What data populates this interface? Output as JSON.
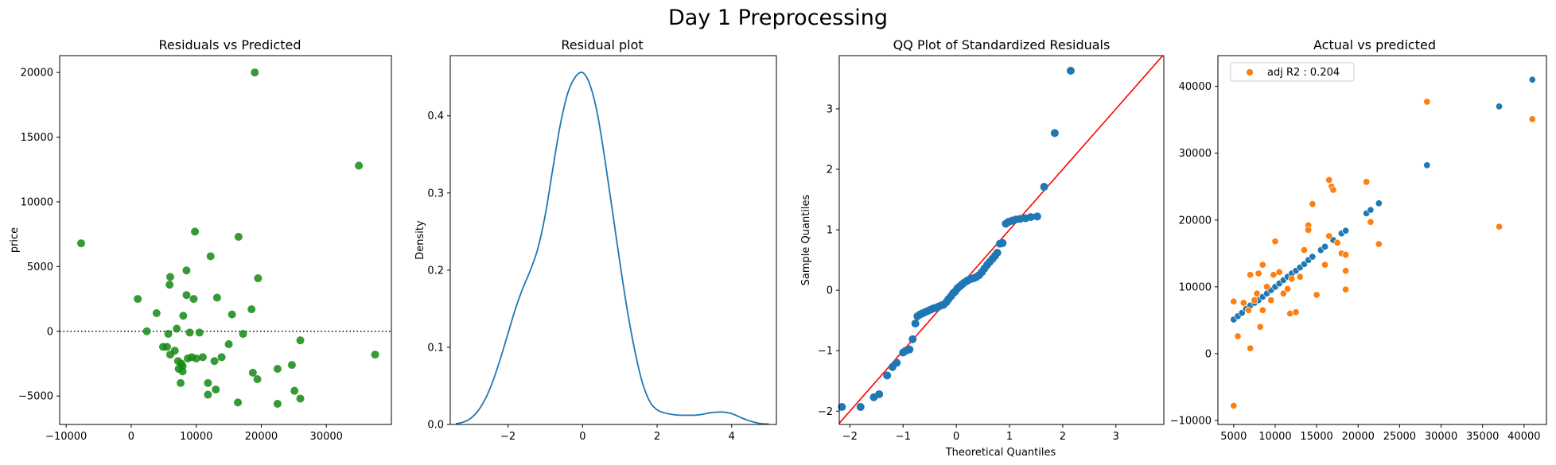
{
  "figure": {
    "title": "Day 1 Preprocessing"
  },
  "chart_data": [
    {
      "type": "scatter",
      "title": "Residuals vs Predicted",
      "xlabel": "",
      "ylabel": "price",
      "xlim": [
        -11000,
        40000
      ],
      "ylim": [
        -7200,
        21300
      ],
      "xticks": [
        -10000,
        0,
        10000,
        20000,
        30000
      ],
      "yticks": [
        -5000,
        0,
        5000,
        10000,
        15000,
        20000
      ],
      "reference_line": {
        "y": 0,
        "style": "dotted"
      },
      "color": "#138a13",
      "points": [
        [
          -7700,
          6800
        ],
        [
          19000,
          20000
        ],
        [
          35000,
          12800
        ],
        [
          37500,
          -1800
        ],
        [
          9800,
          7700
        ],
        [
          16500,
          7300
        ],
        [
          8500,
          4700
        ],
        [
          12200,
          5800
        ],
        [
          19500,
          4100
        ],
        [
          6000,
          4200
        ],
        [
          5900,
          3600
        ],
        [
          1000,
          2500
        ],
        [
          3900,
          1400
        ],
        [
          8500,
          2800
        ],
        [
          9600,
          2500
        ],
        [
          13200,
          2600
        ],
        [
          15500,
          1300
        ],
        [
          18500,
          1700
        ],
        [
          8000,
          1200
        ],
        [
          2400,
          0
        ],
        [
          7000,
          200
        ],
        [
          5700,
          -200
        ],
        [
          9000,
          -100
        ],
        [
          10500,
          -100
        ],
        [
          17200,
          -200
        ],
        [
          26000,
          -700
        ],
        [
          5500,
          -1200
        ],
        [
          6700,
          -1500
        ],
        [
          6000,
          -1800
        ],
        [
          4900,
          -1200
        ],
        [
          15000,
          -1000
        ],
        [
          7200,
          -2300
        ],
        [
          7700,
          -2500
        ],
        [
          7900,
          -2700
        ],
        [
          8700,
          -2100
        ],
        [
          9300,
          -2000
        ],
        [
          10000,
          -2100
        ],
        [
          11000,
          -2000
        ],
        [
          12800,
          -2300
        ],
        [
          13900,
          -2000
        ],
        [
          7300,
          -2900
        ],
        [
          7900,
          -3100
        ],
        [
          7600,
          -4000
        ],
        [
          11800,
          -4000
        ],
        [
          13000,
          -4500
        ],
        [
          11800,
          -4900
        ],
        [
          18700,
          -3200
        ],
        [
          19400,
          -3700
        ],
        [
          22500,
          -2900
        ],
        [
          24700,
          -2600
        ],
        [
          25100,
          -4600
        ],
        [
          16400,
          -5500
        ],
        [
          22500,
          -5600
        ],
        [
          26000,
          -5200
        ]
      ]
    },
    {
      "type": "line",
      "title": "Residual plot",
      "xlabel": "",
      "ylabel": "Density",
      "xlim": [
        -3.55,
        5.2
      ],
      "ylim": [
        0,
        0.478
      ],
      "xticks": [
        -2,
        0,
        2,
        4
      ],
      "yticks": [
        0.0,
        0.1,
        0.2,
        0.3,
        0.4
      ],
      "color": "#1f77b4",
      "x": [
        -3.4,
        -3.2,
        -3.0,
        -2.8,
        -2.6,
        -2.4,
        -2.2,
        -2.0,
        -1.8,
        -1.6,
        -1.4,
        -1.2,
        -1.0,
        -0.8,
        -0.6,
        -0.4,
        -0.2,
        0.0,
        0.2,
        0.4,
        0.6,
        0.8,
        1.0,
        1.2,
        1.4,
        1.6,
        1.8,
        2.0,
        2.2,
        2.4,
        2.6,
        2.8,
        3.0,
        3.2,
        3.4,
        3.6,
        3.8,
        4.0,
        4.2,
        4.4,
        4.6,
        4.8,
        5.0
      ],
      "y": [
        0.001,
        0.003,
        0.008,
        0.018,
        0.034,
        0.057,
        0.086,
        0.118,
        0.15,
        0.177,
        0.2,
        0.228,
        0.272,
        0.331,
        0.388,
        0.429,
        0.45,
        0.456,
        0.44,
        0.402,
        0.343,
        0.277,
        0.21,
        0.148,
        0.096,
        0.055,
        0.03,
        0.019,
        0.015,
        0.013,
        0.012,
        0.012,
        0.012,
        0.013,
        0.015,
        0.016,
        0.016,
        0.014,
        0.01,
        0.006,
        0.003,
        0.001,
        0.0005
      ]
    },
    {
      "type": "scatter",
      "title": "QQ Plot of Standardized Residuals",
      "xlabel": "Theoretical Quantiles",
      "ylabel": "Sample Quantiles",
      "xlim": [
        -2.2,
        3.9
      ],
      "ylim": [
        -2.22,
        3.88
      ],
      "xticks": [
        -2,
        -1,
        0,
        1,
        2,
        3
      ],
      "yticks": [
        -2,
        -1,
        0,
        1,
        2,
        3
      ],
      "reference_line": {
        "type": "45-degree",
        "color": "#ff0000"
      },
      "color": "#1f77b4",
      "points": [
        [
          -2.15,
          -1.93
        ],
        [
          -1.8,
          -1.93
        ],
        [
          -1.55,
          -1.77
        ],
        [
          -1.45,
          -1.72
        ],
        [
          -1.3,
          -1.41
        ],
        [
          -1.2,
          -1.27
        ],
        [
          -1.12,
          -1.2
        ],
        [
          -1.0,
          -1.03
        ],
        [
          -0.95,
          -1.0
        ],
        [
          -0.88,
          -0.98
        ],
        [
          -0.82,
          -0.81
        ],
        [
          -0.77,
          -0.55
        ],
        [
          -0.73,
          -0.43
        ],
        [
          -0.68,
          -0.4
        ],
        [
          -0.63,
          -0.38
        ],
        [
          -0.58,
          -0.36
        ],
        [
          -0.53,
          -0.34
        ],
        [
          -0.48,
          -0.32
        ],
        [
          -0.43,
          -0.3
        ],
        [
          -0.38,
          -0.29
        ],
        [
          -0.33,
          -0.27
        ],
        [
          -0.28,
          -0.25
        ],
        [
          -0.24,
          -0.24
        ],
        [
          -0.19,
          -0.2
        ],
        [
          -0.15,
          -0.15
        ],
        [
          -0.1,
          -0.1
        ],
        [
          -0.06,
          -0.05
        ],
        [
          -0.02,
          -0.02
        ],
        [
          0.02,
          0.03
        ],
        [
          0.06,
          0.06
        ],
        [
          0.1,
          0.09
        ],
        [
          0.14,
          0.12
        ],
        [
          0.19,
          0.15
        ],
        [
          0.23,
          0.17
        ],
        [
          0.28,
          0.19
        ],
        [
          0.33,
          0.2
        ],
        [
          0.38,
          0.22
        ],
        [
          0.43,
          0.25
        ],
        [
          0.48,
          0.3
        ],
        [
          0.53,
          0.36
        ],
        [
          0.58,
          0.42
        ],
        [
          0.63,
          0.47
        ],
        [
          0.68,
          0.52
        ],
        [
          0.73,
          0.57
        ],
        [
          0.77,
          0.62
        ],
        [
          0.82,
          0.77
        ],
        [
          0.87,
          0.78
        ],
        [
          0.93,
          1.1
        ],
        [
          0.98,
          1.13
        ],
        [
          1.05,
          1.15
        ],
        [
          1.12,
          1.17
        ],
        [
          1.2,
          1.18
        ],
        [
          1.3,
          1.19
        ],
        [
          1.4,
          1.21
        ],
        [
          1.52,
          1.22
        ],
        [
          1.65,
          1.71
        ],
        [
          1.85,
          2.6
        ],
        [
          2.15,
          3.63
        ]
      ]
    },
    {
      "type": "scatter",
      "title": "Actual vs predicted",
      "xlabel": "",
      "ylabel": "",
      "xlim": [
        3100,
        42700
      ],
      "ylim": [
        -10600,
        44600
      ],
      "xticks": [
        5000,
        10000,
        15000,
        20000,
        25000,
        30000,
        35000,
        40000
      ],
      "yticks": [
        -10000,
        0,
        10000,
        20000,
        30000,
        40000
      ],
      "legend": {
        "position": "top-left",
        "entries": [
          "adj R2 : 0.204"
        ]
      },
      "series": [
        {
          "color": "#1f77b4",
          "points": [
            [
              5000,
              5100
            ],
            [
              5500,
              5600
            ],
            [
              6000,
              6100
            ],
            [
              6500,
              6700
            ],
            [
              7000,
              7200
            ],
            [
              7500,
              7600
            ],
            [
              8000,
              8000
            ],
            [
              8500,
              8500
            ],
            [
              9000,
              9000
            ],
            [
              9500,
              9500
            ],
            [
              10000,
              10000
            ],
            [
              10500,
              10500
            ],
            [
              11000,
              11000
            ],
            [
              11500,
              11500
            ],
            [
              12000,
              12000
            ],
            [
              12500,
              12400
            ],
            [
              13000,
              12900
            ],
            [
              13500,
              13400
            ],
            [
              14000,
              14000
            ],
            [
              14500,
              14500
            ],
            [
              15500,
              15500
            ],
            [
              16000,
              16000
            ],
            [
              17000,
              17000
            ],
            [
              18000,
              18000
            ],
            [
              18500,
              18400
            ],
            [
              21000,
              21000
            ],
            [
              21500,
              21500
            ],
            [
              22500,
              22500
            ],
            [
              28300,
              28200
            ],
            [
              37000,
              37000
            ],
            [
              41000,
              41000
            ]
          ]
        },
        {
          "name": "adj R2 : 0.204",
          "color": "#ff7f0e",
          "points": [
            [
              5000,
              7800
            ],
            [
              5000,
              -7800
            ],
            [
              5500,
              2600
            ],
            [
              6200,
              7600
            ],
            [
              6800,
              6500
            ],
            [
              7000,
              800
            ],
            [
              7000,
              11800
            ],
            [
              7500,
              8000
            ],
            [
              7800,
              9000
            ],
            [
              8000,
              12000
            ],
            [
              8200,
              4000
            ],
            [
              8500,
              6500
            ],
            [
              8500,
              13300
            ],
            [
              9000,
              10000
            ],
            [
              9500,
              8000
            ],
            [
              9800,
              11800
            ],
            [
              10000,
              16800
            ],
            [
              10500,
              12200
            ],
            [
              11000,
              9000
            ],
            [
              11500,
              9700
            ],
            [
              11800,
              6000
            ],
            [
              12000,
              11200
            ],
            [
              12500,
              6200
            ],
            [
              13000,
              11500
            ],
            [
              13500,
              15500
            ],
            [
              14000,
              19200
            ],
            [
              14000,
              18500
            ],
            [
              14500,
              22400
            ],
            [
              15000,
              8800
            ],
            [
              16000,
              13300
            ],
            [
              16500,
              17600
            ],
            [
              16500,
              26000
            ],
            [
              16800,
              25000
            ],
            [
              17000,
              24500
            ],
            [
              17500,
              16600
            ],
            [
              18000,
              15000
            ],
            [
              18500,
              12400
            ],
            [
              18500,
              9600
            ],
            [
              18500,
              14800
            ],
            [
              21000,
              25700
            ],
            [
              21500,
              19700
            ],
            [
              22500,
              16400
            ],
            [
              28300,
              37700
            ],
            [
              37000,
              19000
            ],
            [
              41000,
              35100
            ]
          ]
        }
      ]
    }
  ]
}
